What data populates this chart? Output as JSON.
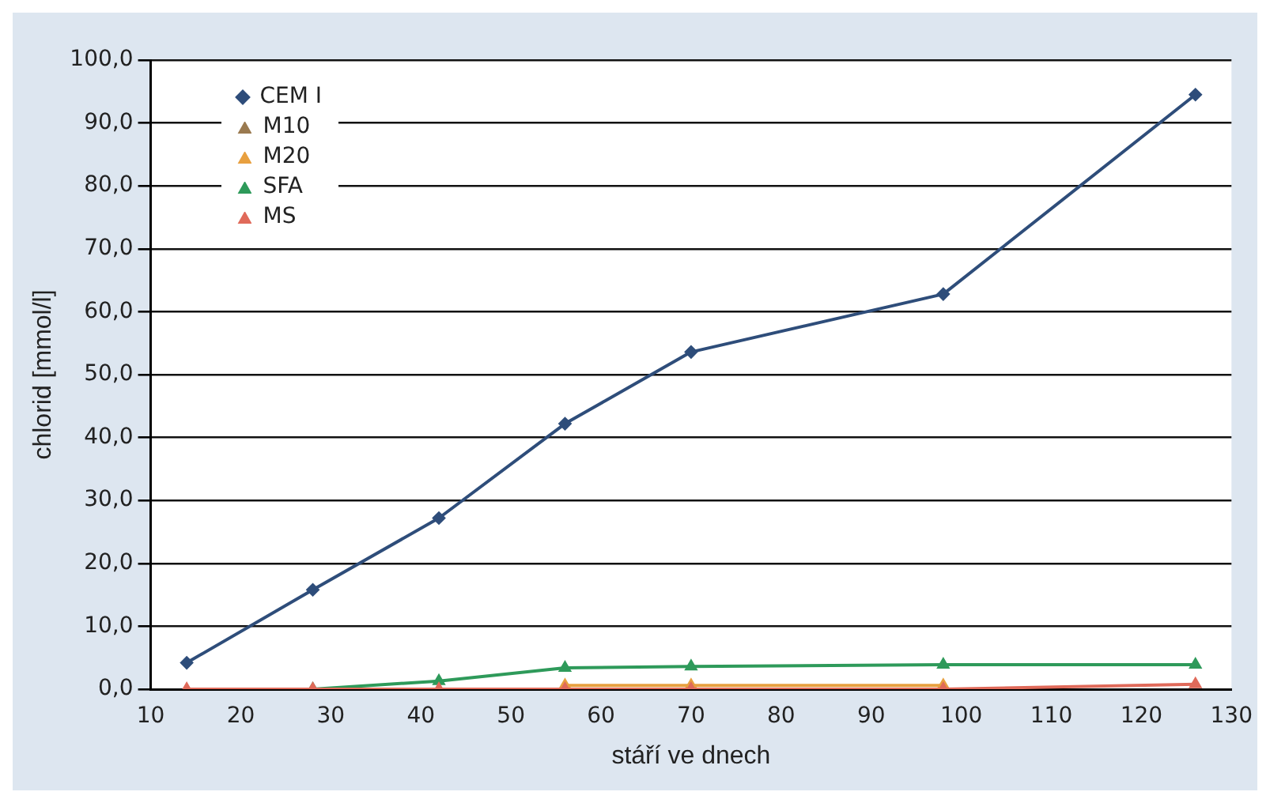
{
  "chart_data": {
    "type": "line",
    "xlabel": "stáří ve dnech",
    "ylabel": "chlorid [mmol/l]",
    "x": [
      14,
      28,
      42,
      56,
      70,
      98,
      126
    ],
    "series": [
      {
        "name": "CEM I",
        "color": "#2e4d7a",
        "marker": "diamond",
        "values": [
          4.2,
          15.8,
          27.2,
          42.2,
          53.6,
          62.8,
          94.5
        ]
      },
      {
        "name": "M10",
        "color": "#9a7a50",
        "marker": "triangle",
        "values": [
          null,
          null,
          null,
          null,
          null,
          null,
          null
        ]
      },
      {
        "name": "M20",
        "color": "#e8a040",
        "marker": "triangle",
        "values": [
          null,
          null,
          null,
          0.6,
          0.6,
          0.6,
          null
        ]
      },
      {
        "name": "SFA",
        "color": "#2e9a5a",
        "marker": "triangle",
        "values": [
          null,
          0,
          1.3,
          3.4,
          3.6,
          3.9,
          3.9
        ]
      },
      {
        "name": "MS",
        "color": "#e06a5a",
        "marker": "triangle",
        "values": [
          0,
          0,
          0,
          0,
          0,
          0,
          0.8
        ]
      }
    ],
    "xlim": [
      10,
      130
    ],
    "xticks": [
      10,
      20,
      30,
      40,
      50,
      60,
      70,
      80,
      90,
      100,
      110,
      120,
      130
    ],
    "ylim": [
      0,
      100
    ],
    "yticks": [
      {
        "value": 0,
        "label": "0,0"
      },
      {
        "value": 10,
        "label": "10,0"
      },
      {
        "value": 20,
        "label": "20,0"
      },
      {
        "value": 30,
        "label": "30,0"
      },
      {
        "value": 40,
        "label": "40,0"
      },
      {
        "value": 50,
        "label": "50,0"
      },
      {
        "value": 60,
        "label": "60,0"
      },
      {
        "value": 70,
        "label": "70,0"
      },
      {
        "value": 80,
        "label": "80,0"
      },
      {
        "value": 90,
        "label": "90,0"
      },
      {
        "value": 100,
        "label": "100,0"
      }
    ],
    "grid": "y",
    "legend": "top left"
  }
}
